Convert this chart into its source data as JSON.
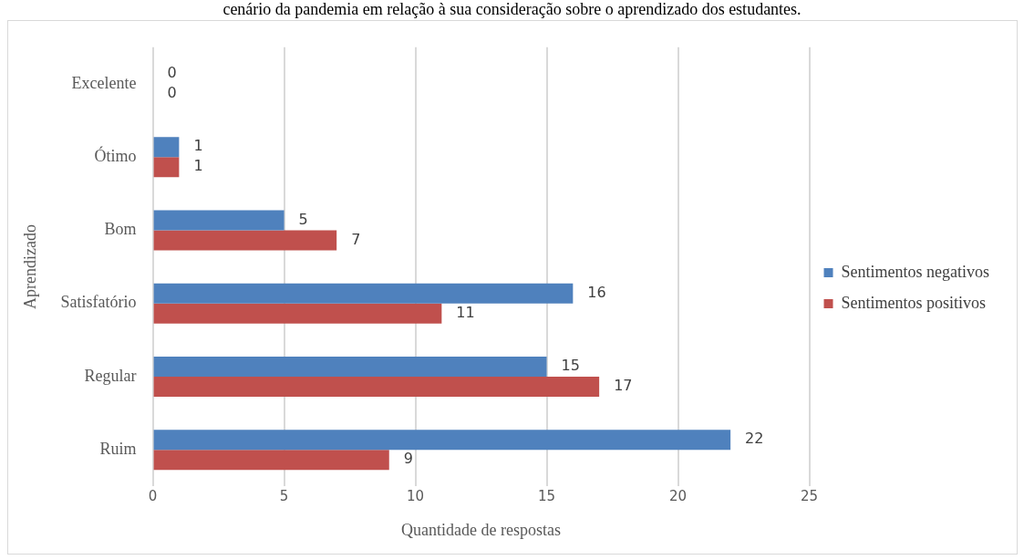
{
  "chart_data": {
    "type": "bar",
    "orientation": "horizontal",
    "title": "cenário da pandemia em relação à sua consideração sobre o aprendizado dos estudantes.",
    "xlabel": "Quantidade de respostas",
    "ylabel": "Aprendizado",
    "categories": [
      "Excelente",
      "Ótimo",
      "Bom",
      "Satisfatório",
      "Regular",
      "Ruim"
    ],
    "series": [
      {
        "name": "Sentimentos negativos",
        "color": "#4f81bd",
        "values": [
          0,
          1,
          5,
          16,
          15,
          22
        ]
      },
      {
        "name": "Sentimentos positivos",
        "color": "#c0504d",
        "values": [
          0,
          1,
          7,
          11,
          17,
          9
        ]
      }
    ],
    "xlim": [
      0,
      25
    ],
    "xticks": [
      0,
      5,
      10,
      15,
      20,
      25
    ],
    "grid": "x",
    "legend": "right",
    "data_labels": true
  }
}
